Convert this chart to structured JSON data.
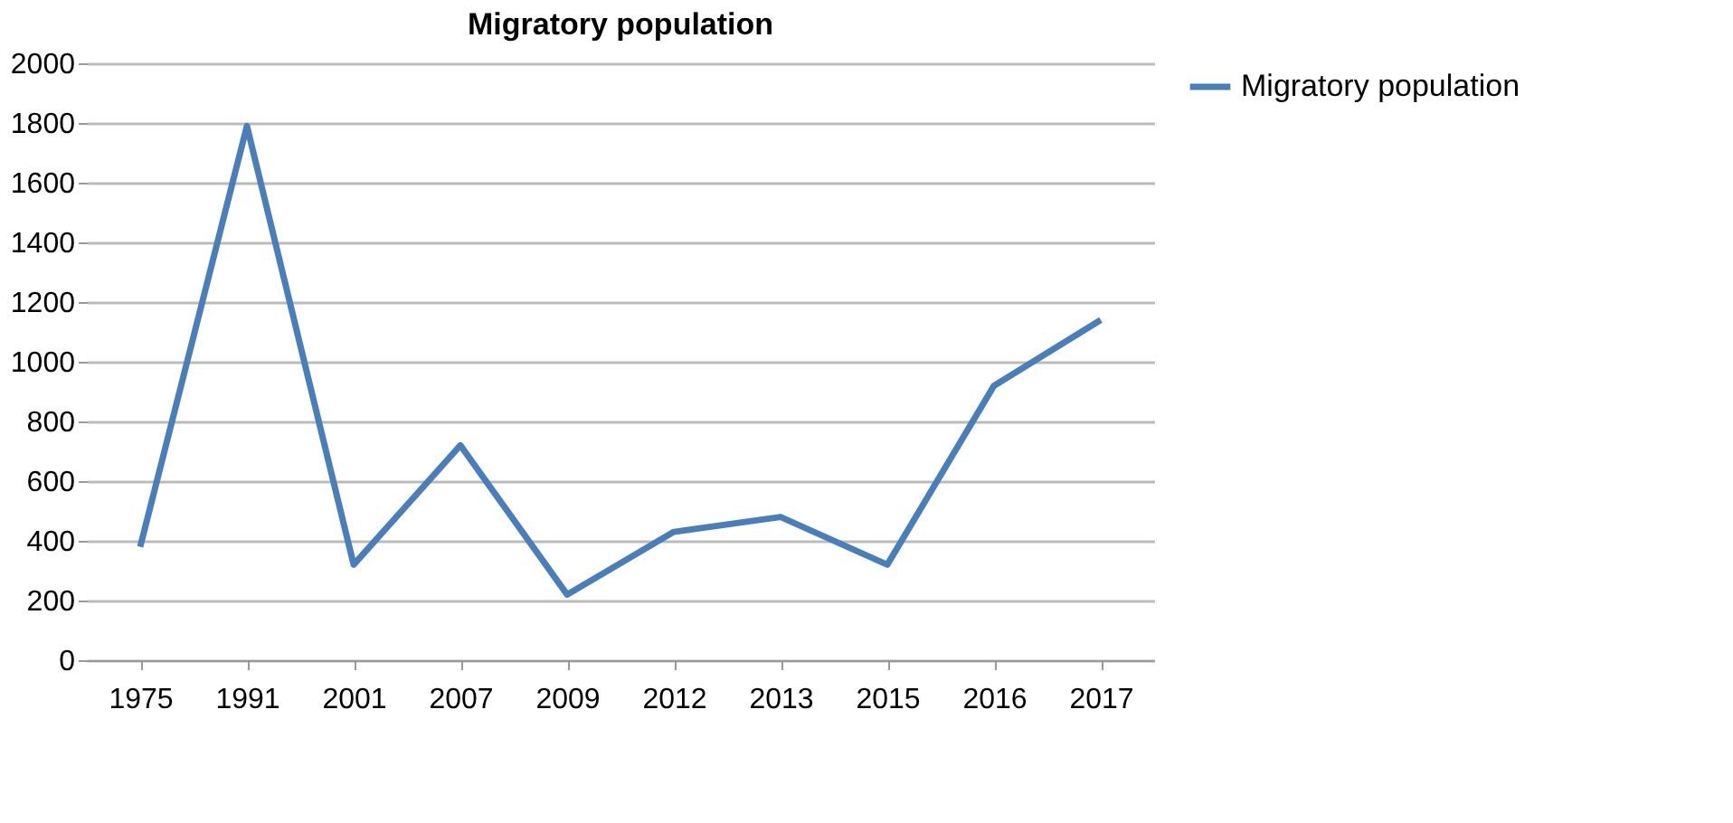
{
  "chart_data": {
    "type": "line",
    "title": "Migratory population",
    "categories": [
      "1975",
      "1991",
      "2001",
      "2007",
      "2009",
      "2012",
      "2013",
      "2015",
      "2016",
      "2017"
    ],
    "series": [
      {
        "name": "Migratory population",
        "color": "#4a7ebb",
        "values": [
          380,
          1790,
          320,
          720,
          220,
          430,
          480,
          320,
          920,
          1140
        ]
      }
    ],
    "ylim": [
      0,
      2000
    ],
    "yticks": [
      0,
      200,
      400,
      600,
      800,
      1000,
      1200,
      1400,
      1600,
      1800,
      2000
    ],
    "grid": "y",
    "legend": "right",
    "marker": "none",
    "line_style": "solid"
  }
}
